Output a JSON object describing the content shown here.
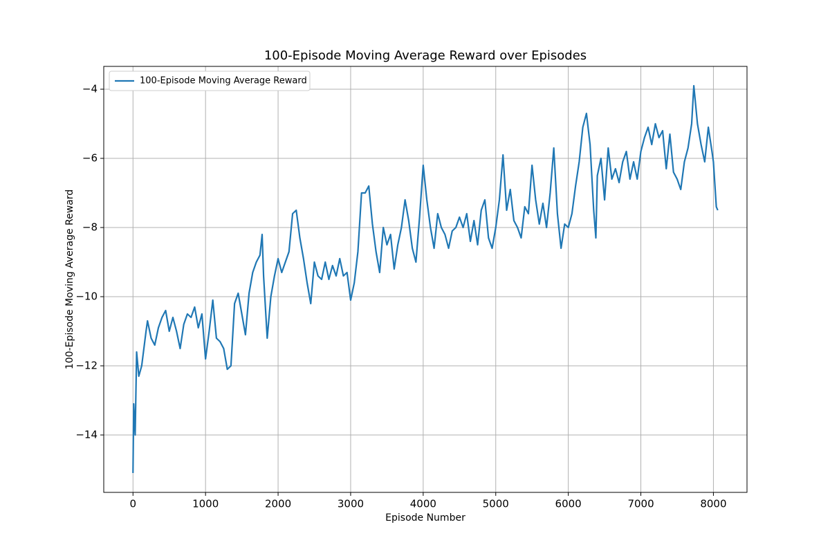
{
  "chart_data": {
    "type": "line",
    "title": "100-Episode Moving Average Reward over Episodes",
    "x_label": "Episode Number",
    "y_label": "100-Episode Moving Average Reward",
    "x": [
      0,
      10,
      30,
      50,
      80,
      120,
      150,
      180,
      200,
      250,
      300,
      350,
      400,
      450,
      500,
      550,
      600,
      650,
      700,
      750,
      800,
      850,
      900,
      950,
      1000,
      1050,
      1100,
      1150,
      1200,
      1250,
      1300,
      1350,
      1400,
      1450,
      1500,
      1550,
      1600,
      1650,
      1700,
      1750,
      1780,
      1800,
      1850,
      1900,
      1950,
      2000,
      2050,
      2100,
      2150,
      2200,
      2250,
      2300,
      2350,
      2400,
      2450,
      2500,
      2550,
      2600,
      2650,
      2700,
      2750,
      2800,
      2850,
      2900,
      2950,
      3000,
      3050,
      3100,
      3150,
      3200,
      3250,
      3300,
      3350,
      3400,
      3450,
      3500,
      3550,
      3600,
      3650,
      3700,
      3750,
      3800,
      3850,
      3900,
      3950,
      4000,
      4050,
      4100,
      4150,
      4200,
      4250,
      4300,
      4350,
      4400,
      4450,
      4500,
      4550,
      4600,
      4650,
      4700,
      4750,
      4800,
      4850,
      4900,
      4950,
      5000,
      5050,
      5100,
      5150,
      5200,
      5250,
      5300,
      5350,
      5400,
      5450,
      5500,
      5550,
      5600,
      5650,
      5700,
      5750,
      5800,
      5850,
      5900,
      5950,
      6000,
      6050,
      6100,
      6150,
      6200,
      6250,
      6300,
      6350,
      6380,
      6400,
      6450,
      6500,
      6550,
      6600,
      6650,
      6700,
      6750,
      6800,
      6850,
      6900,
      6950,
      7000,
      7050,
      7100,
      7150,
      7200,
      7250,
      7300,
      7350,
      7400,
      7450,
      7500,
      7550,
      7600,
      7650,
      7700,
      7730,
      7780,
      7830,
      7880,
      7930,
      7980,
      8000,
      8040,
      8060
    ],
    "series": [
      {
        "name": "100-Episode Moving Average Reward",
        "color": "#1f77b4",
        "values": [
          -15.1,
          -13.1,
          -14,
          -11.6,
          -12.3,
          -12.0,
          -11.5,
          -11.0,
          -10.7,
          -11.2,
          -11.4,
          -10.9,
          -10.6,
          -10.4,
          -11.0,
          -10.6,
          -11.0,
          -11.5,
          -10.8,
          -10.5,
          -10.6,
          -10.3,
          -10.9,
          -10.5,
          -11.8,
          -11.0,
          -10.1,
          -11.2,
          -11.3,
          -11.5,
          -12.1,
          -12.0,
          -10.2,
          -9.9,
          -10.5,
          -11.1,
          -9.9,
          -9.3,
          -9.0,
          -8.8,
          -8.2,
          -9.4,
          -11.2,
          -10.0,
          -9.4,
          -8.9,
          -9.3,
          -9.0,
          -8.7,
          -7.6,
          -7.5,
          -8.3,
          -8.9,
          -9.6,
          -10.2,
          -9.0,
          -9.4,
          -9.5,
          -9.0,
          -9.5,
          -9.1,
          -9.4,
          -8.9,
          -9.4,
          -9.3,
          -10.1,
          -9.6,
          -8.7,
          -7.0,
          -7.0,
          -6.8,
          -7.9,
          -8.7,
          -9.3,
          -8.0,
          -8.5,
          -8.2,
          -9.2,
          -8.5,
          -8.0,
          -7.2,
          -7.8,
          -8.6,
          -9.0,
          -7.7,
          -6.2,
          -7.2,
          -8.0,
          -8.6,
          -7.6,
          -8.0,
          -8.2,
          -8.6,
          -8.1,
          -8.0,
          -7.7,
          -8.0,
          -7.6,
          -8.4,
          -7.8,
          -8.5,
          -7.5,
          -7.2,
          -8.3,
          -8.6,
          -8.0,
          -7.2,
          -5.9,
          -7.5,
          -6.9,
          -7.8,
          -8.0,
          -8.3,
          -7.4,
          -7.6,
          -6.2,
          -7.2,
          -7.9,
          -7.3,
          -8.0,
          -7.0,
          -5.7,
          -7.6,
          -8.6,
          -7.9,
          -8.0,
          -7.6,
          -6.8,
          -6.1,
          -5.1,
          -4.7,
          -5.6,
          -7.5,
          -8.3,
          -6.5,
          -6.0,
          -7.2,
          -5.7,
          -6.6,
          -6.3,
          -6.7,
          -6.1,
          -5.8,
          -6.6,
          -6.1,
          -6.6,
          -5.8,
          -5.4,
          -5.1,
          -5.6,
          -5.0,
          -5.4,
          -5.2,
          -6.3,
          -5.3,
          -6.4,
          -6.6,
          -6.9,
          -6.1,
          -5.7,
          -5.0,
          -3.9,
          -5.0,
          -5.6,
          -6.1,
          -5.1,
          -5.8,
          -6.1,
          -7.4,
          -7.5
        ]
      }
    ],
    "xlim": [
      -403,
      8463
    ],
    "ylim": [
      -15.66,
      -3.34
    ],
    "xticks": [
      0,
      1000,
      2000,
      3000,
      4000,
      5000,
      6000,
      7000,
      8000
    ],
    "yticks": [
      {
        "value": -14,
        "label": "−14"
      },
      {
        "value": -12,
        "label": "−12"
      },
      {
        "value": -10,
        "label": "−10"
      },
      {
        "value": -8,
        "label": "−8"
      },
      {
        "value": -6,
        "label": "−6"
      },
      {
        "value": -4,
        "label": "−4"
      }
    ],
    "grid": true,
    "legend": "upper left"
  }
}
